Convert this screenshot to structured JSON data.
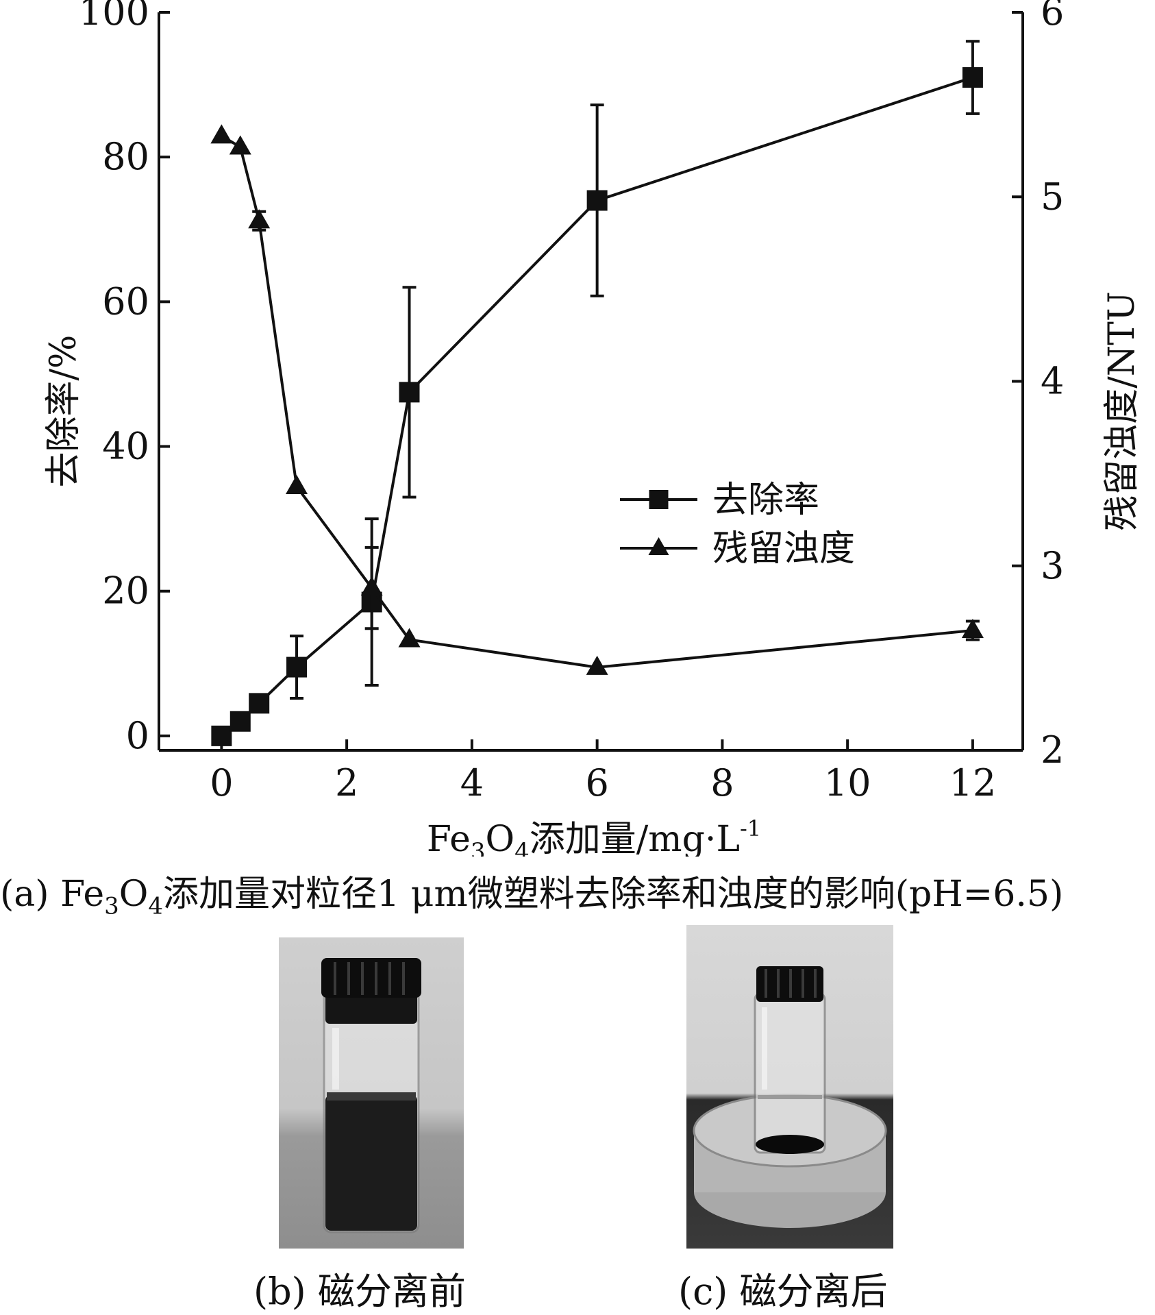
{
  "chart_data": {
    "type": "line",
    "x": [
      0,
      0.3,
      0.6,
      1.2,
      2.4,
      3,
      6,
      12
    ],
    "series": [
      {
        "name": "去除率",
        "axis": "left",
        "marker": "square",
        "values": [
          0,
          2,
          4.5,
          9.5,
          18.5,
          47.5,
          74,
          91
        ],
        "errors": [
          0,
          0,
          0,
          4.3,
          11.5,
          14.5,
          13.2,
          5
        ]
      },
      {
        "name": "残留浊度",
        "axis": "right",
        "marker": "triangle",
        "values": [
          5.33,
          5.27,
          4.87,
          3.43,
          2.88,
          2.6,
          2.45,
          2.65
        ],
        "errors": [
          0,
          0,
          0.05,
          0,
          0.22,
          0,
          0,
          0.05
        ]
      }
    ],
    "xlabel": "Fe3O4添加量/mg·L-1",
    "ylabel": "去除率/%",
    "y2label": "残留浊度/NTU",
    "xlim": [
      -1,
      12.8
    ],
    "ylim": [
      -2,
      100
    ],
    "y2lim": [
      2,
      6
    ],
    "xticks": [
      0,
      2,
      4,
      6,
      8,
      10,
      12
    ],
    "yticks": [
      0,
      20,
      40,
      60,
      80,
      100
    ],
    "y2ticks": [
      2,
      3,
      4,
      5,
      6
    ],
    "legend_position": "center-right",
    "grid": false
  },
  "labels": {
    "xlabel_main": "Fe",
    "xlabel_sub3": "3",
    "xlabel_o": "O",
    "xlabel_sub4": "4",
    "xlabel_rest": "添加量/mg",
    "xlabel_dot": "·",
    "xlabel_l": "L",
    "xlabel_sup": "-1"
  },
  "captions": {
    "a_prefix": "(a) Fe",
    "a_sub3": "3",
    "a_o": "O",
    "a_sub4": "4",
    "a_rest": "添加量对粒径1 μm微塑料去除率和浊度的影响(pH=6.5)",
    "b": "(b) 磁分离前",
    "c": "(c) 磁分离后"
  },
  "photos": {
    "before": "vial-with-dark-suspension-photo",
    "after": "vial-on-magnet-clear-liquid-photo"
  }
}
